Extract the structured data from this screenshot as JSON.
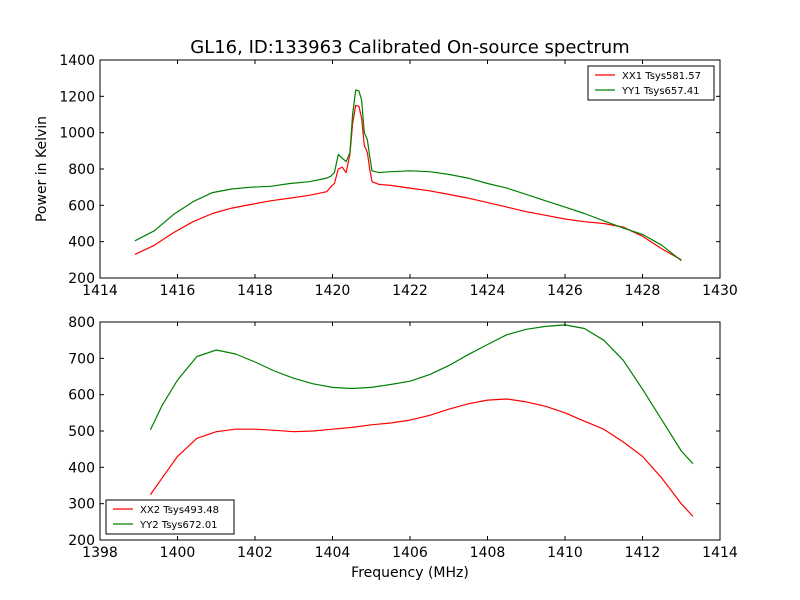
{
  "title": "GL16, ID:133963 Calibrated On-source spectrum",
  "ylabel": "Power in Kelvin",
  "xlabel": "Frequency (MHz)",
  "colors": {
    "xx": "#ff0000",
    "yy": "#008000"
  },
  "chart_data": [
    {
      "type": "line",
      "title": "GL16, ID:133963 Calibrated On-source spectrum",
      "ylabel": "Power in Kelvin",
      "xlabel": "",
      "xlim": [
        1414,
        1430
      ],
      "ylim": [
        200,
        1400
      ],
      "xticks": [
        "1414",
        "1416",
        "1418",
        "1420",
        "1422",
        "1424",
        "1426",
        "1428",
        "1430"
      ],
      "yticks": [
        "200",
        "400",
        "600",
        "800",
        "1000",
        "1200",
        "1400"
      ],
      "legend_position": "upper right",
      "grid": false,
      "series": [
        {
          "name": "XX1 Tsys581.57",
          "color": "#ff0000",
          "points": [
            [
              1414.9,
              330
            ],
            [
              1415.4,
              380
            ],
            [
              1415.9,
              450
            ],
            [
              1416.4,
              510
            ],
            [
              1416.9,
              555
            ],
            [
              1417.4,
              585
            ],
            [
              1417.9,
              605
            ],
            [
              1418.4,
              625
            ],
            [
              1418.9,
              640
            ],
            [
              1419.4,
              655
            ],
            [
              1419.85,
              675
            ],
            [
              1419.95,
              700
            ],
            [
              1420.05,
              720
            ],
            [
              1420.15,
              800
            ],
            [
              1420.25,
              810
            ],
            [
              1420.35,
              780
            ],
            [
              1420.45,
              880
            ],
            [
              1420.52,
              1050
            ],
            [
              1420.6,
              1150
            ],
            [
              1420.68,
              1145
            ],
            [
              1420.75,
              1080
            ],
            [
              1420.82,
              930
            ],
            [
              1420.9,
              890
            ],
            [
              1420.96,
              800
            ],
            [
              1421.02,
              730
            ],
            [
              1421.2,
              715
            ],
            [
              1421.5,
              710
            ],
            [
              1422,
              695
            ],
            [
              1422.5,
              680
            ],
            [
              1423,
              660
            ],
            [
              1423.5,
              640
            ],
            [
              1424,
              615
            ],
            [
              1424.5,
              590
            ],
            [
              1425,
              565
            ],
            [
              1425.5,
              545
            ],
            [
              1426,
              525
            ],
            [
              1426.5,
              510
            ],
            [
              1427,
              500
            ],
            [
              1427.5,
              480
            ],
            [
              1428,
              430
            ],
            [
              1428.5,
              360
            ],
            [
              1429,
              300
            ]
          ]
        },
        {
          "name": "YY1 Tsys657.41",
          "color": "#008000",
          "points": [
            [
              1414.9,
              405
            ],
            [
              1415.4,
              460
            ],
            [
              1415.9,
              550
            ],
            [
              1416.4,
              620
            ],
            [
              1416.9,
              670
            ],
            [
              1417.4,
              690
            ],
            [
              1417.9,
              700
            ],
            [
              1418.4,
              705
            ],
            [
              1418.9,
              720
            ],
            [
              1419.4,
              730
            ],
            [
              1419.85,
              750
            ],
            [
              1419.95,
              760
            ],
            [
              1420.05,
              780
            ],
            [
              1420.15,
              880
            ],
            [
              1420.25,
              860
            ],
            [
              1420.35,
              840
            ],
            [
              1420.45,
              890
            ],
            [
              1420.52,
              1100
            ],
            [
              1420.6,
              1235
            ],
            [
              1420.68,
              1230
            ],
            [
              1420.75,
              1180
            ],
            [
              1420.82,
              1000
            ],
            [
              1420.9,
              960
            ],
            [
              1420.96,
              870
            ],
            [
              1421.02,
              790
            ],
            [
              1421.2,
              780
            ],
            [
              1421.5,
              785
            ],
            [
              1422,
              790
            ],
            [
              1422.5,
              785
            ],
            [
              1423,
              770
            ],
            [
              1423.5,
              750
            ],
            [
              1424,
              720
            ],
            [
              1424.5,
              695
            ],
            [
              1425,
              660
            ],
            [
              1425.5,
              625
            ],
            [
              1426,
              590
            ],
            [
              1426.5,
              555
            ],
            [
              1427,
              515
            ],
            [
              1427.5,
              475
            ],
            [
              1428,
              440
            ],
            [
              1428.5,
              380
            ],
            [
              1429,
              295
            ]
          ]
        }
      ]
    },
    {
      "type": "line",
      "title": "",
      "ylabel": "",
      "xlabel": "Frequency (MHz)",
      "xlim": [
        1398,
        1414
      ],
      "ylim": [
        200,
        800
      ],
      "xticks": [
        "1398",
        "1400",
        "1402",
        "1404",
        "1406",
        "1408",
        "1410",
        "1412",
        "1414"
      ],
      "yticks": [
        "200",
        "300",
        "400",
        "500",
        "600",
        "700",
        "800"
      ],
      "legend_position": "lower left",
      "grid": false,
      "series": [
        {
          "name": "XX2 Tsys493.48",
          "color": "#ff0000",
          "points": [
            [
              1399.3,
              325
            ],
            [
              1399.6,
              370
            ],
            [
              1400,
              430
            ],
            [
              1400.5,
              480
            ],
            [
              1401,
              498
            ],
            [
              1401.5,
              505
            ],
            [
              1402,
              505
            ],
            [
              1402.5,
              502
            ],
            [
              1403,
              498
            ],
            [
              1403.5,
              500
            ],
            [
              1404,
              505
            ],
            [
              1404.5,
              510
            ],
            [
              1405,
              517
            ],
            [
              1405.5,
              522
            ],
            [
              1406,
              530
            ],
            [
              1406.5,
              543
            ],
            [
              1407,
              560
            ],
            [
              1407.5,
              575
            ],
            [
              1408,
              585
            ],
            [
              1408.5,
              588
            ],
            [
              1409,
              580
            ],
            [
              1409.5,
              568
            ],
            [
              1410,
              550
            ],
            [
              1410.5,
              527
            ],
            [
              1411,
              505
            ],
            [
              1411.5,
              470
            ],
            [
              1412,
              430
            ],
            [
              1412.5,
              370
            ],
            [
              1413,
              300
            ],
            [
              1413.3,
              265
            ]
          ]
        },
        {
          "name": "YY2 Tsys672.01",
          "color": "#008000",
          "points": [
            [
              1399.3,
              503
            ],
            [
              1399.6,
              570
            ],
            [
              1400,
              640
            ],
            [
              1400.5,
              705
            ],
            [
              1401,
              723
            ],
            [
              1401.5,
              712
            ],
            [
              1402,
              690
            ],
            [
              1402.5,
              665
            ],
            [
              1403,
              645
            ],
            [
              1403.5,
              630
            ],
            [
              1404,
              620
            ],
            [
              1404.5,
              617
            ],
            [
              1405,
              620
            ],
            [
              1405.5,
              628
            ],
            [
              1406,
              637
            ],
            [
              1406.5,
              655
            ],
            [
              1407,
              680
            ],
            [
              1407.5,
              710
            ],
            [
              1408,
              738
            ],
            [
              1408.5,
              765
            ],
            [
              1409,
              780
            ],
            [
              1409.5,
              788
            ],
            [
              1410,
              792
            ],
            [
              1410.5,
              782
            ],
            [
              1411,
              750
            ],
            [
              1411.5,
              695
            ],
            [
              1412,
              615
            ],
            [
              1412.5,
              530
            ],
            [
              1413,
              445
            ],
            [
              1413.3,
              410
            ]
          ]
        }
      ]
    }
  ]
}
